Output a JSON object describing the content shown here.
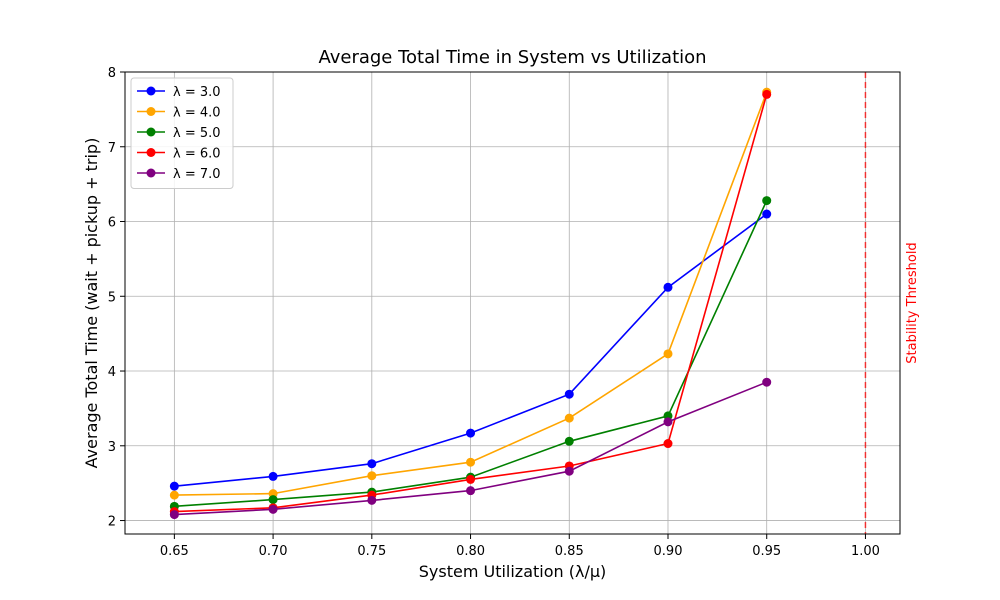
{
  "chart_data": {
    "type": "line",
    "title": "Average Total Time in System vs Utilization",
    "xlabel": "System Utilization (λ/μ)",
    "ylabel": "Average Total Time (wait + pickup + trip)",
    "xlim": [
      0.625,
      1.0175
    ],
    "ylim": [
      1.82,
      8.0
    ],
    "xticks": [
      0.65,
      0.7,
      0.75,
      0.8,
      0.85,
      0.9,
      0.95,
      1.0
    ],
    "xtick_labels": [
      "0.65",
      "0.70",
      "0.75",
      "0.80",
      "0.85",
      "0.90",
      "0.95",
      "1.00"
    ],
    "yticks": [
      2,
      3,
      4,
      5,
      6,
      7,
      8
    ],
    "ytick_labels": [
      "2",
      "3",
      "4",
      "5",
      "6",
      "7",
      "8"
    ],
    "grid": true,
    "legend_position": "top-left",
    "x": [
      0.65,
      0.7,
      0.75,
      0.8,
      0.85,
      0.9,
      0.95
    ],
    "series": [
      {
        "name": "λ = 3.0",
        "color": "#0000ff",
        "values": [
          2.46,
          2.59,
          2.76,
          3.17,
          3.69,
          5.12,
          6.1
        ]
      },
      {
        "name": "λ = 4.0",
        "color": "#ffa500",
        "values": [
          2.34,
          2.36,
          2.6,
          2.78,
          3.37,
          4.23,
          7.73
        ]
      },
      {
        "name": "λ = 5.0",
        "color": "#008000",
        "values": [
          2.19,
          2.28,
          2.38,
          2.58,
          3.06,
          3.4,
          6.28
        ]
      },
      {
        "name": "λ = 6.0",
        "color": "#ff0000",
        "values": [
          2.12,
          2.17,
          2.34,
          2.55,
          2.73,
          3.03,
          7.7
        ]
      },
      {
        "name": "λ = 7.0",
        "color": "#800080",
        "values": [
          2.08,
          2.15,
          2.27,
          2.4,
          2.66,
          3.32,
          3.85
        ]
      }
    ],
    "reference_line": {
      "x": 1.0,
      "label": "Stability Threshold",
      "color": "#ff0000",
      "style": "dashed"
    }
  }
}
